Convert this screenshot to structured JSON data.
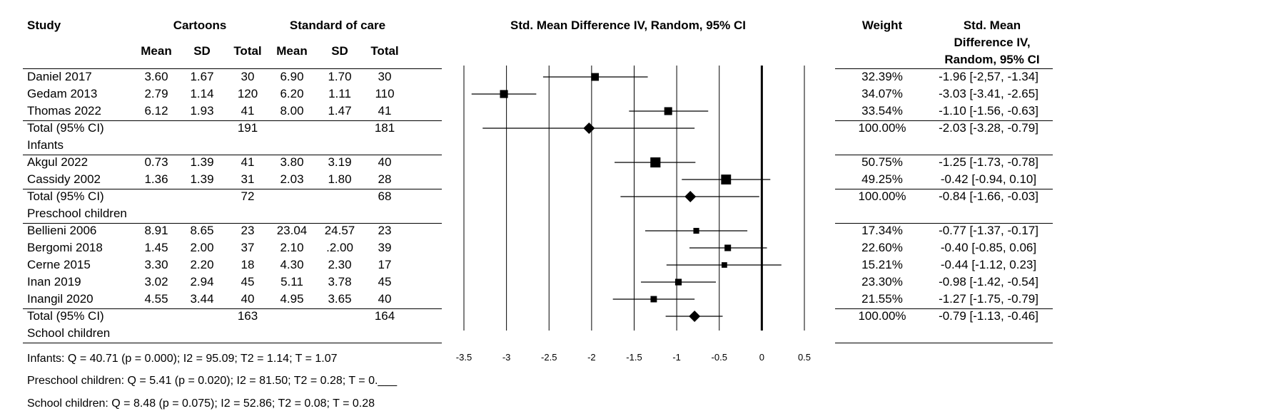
{
  "headers": {
    "study": "Study",
    "group1": "Cartoons",
    "group2": "Standard of care",
    "mean": "Mean",
    "sd": "SD",
    "total": "Total",
    "plot_title": "Std. Mean Difference IV, Random, 95% CI",
    "weight": "Weight",
    "smd_lines": [
      "Std. Mean",
      "Difference IV,",
      "Random, 95% CI"
    ]
  },
  "rows": [
    {
      "type": "study",
      "name": "Daniel 2017",
      "m1": "3.60",
      "sd1": "1.67",
      "n1": "30",
      "m2": "6.90",
      "sd2": "1.70",
      "n2": "30",
      "weight": "32.39%",
      "ci": "-1.96 [-2,57, -1.34]",
      "est": -1.96,
      "lo": -2.57,
      "hi": -1.34,
      "marker": "square",
      "w": 32.39
    },
    {
      "type": "study",
      "name": "Gedam 2013",
      "m1": "2.79",
      "sd1": "1.14",
      "n1": "120",
      "m2": "6.20",
      "sd2": "1.11",
      "n2": "110",
      "weight": "34.07%",
      "ci": "-3.03 [-3.41, -2.65]",
      "est": -3.03,
      "lo": -3.41,
      "hi": -2.65,
      "marker": "square",
      "w": 34.07
    },
    {
      "type": "study",
      "name": "Thomas 2022",
      "m1": "6.12",
      "sd1": "1.93",
      "n1": "41",
      "m2": "8.00",
      "sd2": "1.47",
      "n2": "41",
      "weight": "33.54%",
      "ci": "-1.10 [-1.56, -0.63]",
      "est": -1.1,
      "lo": -1.56,
      "hi": -0.63,
      "marker": "square",
      "w": 33.54
    },
    {
      "type": "total",
      "name": "Total (95% CI)",
      "m1": "",
      "sd1": "",
      "n1": "191",
      "m2": "",
      "sd2": "",
      "n2": "181",
      "weight": "100.00%",
      "ci": "-2.03 [-3.28, -0.79]",
      "est": -2.03,
      "lo": -3.28,
      "hi": -0.79,
      "marker": "diamond"
    },
    {
      "type": "label",
      "name": "Infants"
    },
    {
      "type": "study",
      "name": "Akgul 2022",
      "m1": "0.73",
      "sd1": "1.39",
      "n1": "41",
      "m2": "3.80",
      "sd2": "3.19",
      "n2": "40",
      "weight": "50.75%",
      "ci": "-1.25 [-1.73, -0.78]",
      "est": -1.25,
      "lo": -1.73,
      "hi": -0.78,
      "marker": "square",
      "w": 50.75
    },
    {
      "type": "study",
      "name": "Cassidy 2002",
      "m1": "1.36",
      "sd1": "1.39",
      "n1": "31",
      "m2": "2.03",
      "sd2": "1.80",
      "n2": "28",
      "weight": "49.25%",
      "ci": "-0.42 [-0.94, 0.10]",
      "est": -0.42,
      "lo": -0.94,
      "hi": 0.1,
      "marker": "square",
      "w": 49.25
    },
    {
      "type": "total",
      "name": "Total (95% CI)",
      "m1": "",
      "sd1": "",
      "n1": "72",
      "m2": "",
      "sd2": "",
      "n2": "68",
      "weight": "100.00%",
      "ci": "-0.84 [-1.66, -0.03]",
      "est": -0.84,
      "lo": -1.66,
      "hi": -0.03,
      "marker": "diamond"
    },
    {
      "type": "label",
      "name": "Preschool children"
    },
    {
      "type": "study",
      "name": "Bellieni 2006",
      "m1": "8.91",
      "sd1": "8.65",
      "n1": "23",
      "m2": "23.04",
      "sd2": "24.57",
      "n2": "23",
      "weight": "17.34%",
      "ci": "-0.77 [-1.37, -0.17]",
      "est": -0.77,
      "lo": -1.37,
      "hi": -0.17,
      "marker": "square",
      "w": 17.34
    },
    {
      "type": "study",
      "name": "Bergomi 2018",
      "m1": "1.45",
      "sd1": "2.00",
      "n1": "37",
      "m2": "2.10",
      "sd2": ".2.00",
      "n2": "39",
      "weight": "22.60%",
      "ci": "-0.40 [-0.85, 0.06]",
      "est": -0.4,
      "lo": -0.85,
      "hi": 0.06,
      "marker": "square",
      "w": 22.6
    },
    {
      "type": "study",
      "name": "Cerne 2015",
      "m1": "3.30",
      "sd1": "2.20",
      "n1": "18",
      "m2": "4.30",
      "sd2": "2.30",
      "n2": "17",
      "weight": "15.21%",
      "ci": "-0.44 [-1.12, 0.23]",
      "est": -0.44,
      "lo": -1.12,
      "hi": 0.23,
      "marker": "square",
      "w": 15.21
    },
    {
      "type": "study",
      "name": "Inan 2019",
      "m1": "3.02",
      "sd1": "2.94",
      "n1": "45",
      "m2": "5.11",
      "sd2": "3.78",
      "n2": "45",
      "weight": "23.30%",
      "ci": "-0.98 [-1.42, -0.54]",
      "est": -0.98,
      "lo": -1.42,
      "hi": -0.54,
      "marker": "square",
      "w": 23.3
    },
    {
      "type": "study",
      "name": "Inangil 2020",
      "m1": "4.55",
      "sd1": "3.44",
      "n1": "40",
      "m2": "4.95",
      "sd2": "3.65",
      "n2": "40",
      "weight": "21.55%",
      "ci": "-1.27 [-1.75, -0.79]",
      "est": -1.27,
      "lo": -1.75,
      "hi": -0.79,
      "marker": "square",
      "w": 21.55
    },
    {
      "type": "total",
      "name": "Total (95% CI)",
      "m1": "",
      "sd1": "",
      "n1": "163",
      "m2": "",
      "sd2": "",
      "n2": "164",
      "weight": "100.00%",
      "ci": "-0.79 [-1.13, -0.46]",
      "est": -0.79,
      "lo": -1.13,
      "hi": -0.46,
      "marker": "diamond"
    },
    {
      "type": "label",
      "name": "School children"
    }
  ],
  "footnotes": [
    "Infants: Q = 40.71 (p = 0.000); I2 = 95.09; T2 = 1.14; T = 1.07",
    "Preschool children: Q = 5.41 (p = 0.020); I2 = 81.50; T2 = 0.28; T = 0.___",
    "School children: Q = 8.48 (p = 0.075); I2 = 52.86; T2 = 0.08; T = 0.28"
  ],
  "chart_data": {
    "type": "scatter",
    "subtype": "forest",
    "title": "Std. Mean Difference IV, Random, 95% CI",
    "xlim": [
      -3.5,
      0.5
    ],
    "xticks": [
      -3.5,
      -3,
      -2.5,
      -2,
      -1.5,
      -1,
      -0.5,
      0,
      0.5
    ],
    "xtick_labels": [
      "-3.5",
      "-3",
      "-2.5",
      "-2",
      "-1.5",
      "-1",
      "-0.5",
      "0",
      "0.5"
    ],
    "gridlines": [
      -3.5,
      -3,
      -2.5,
      -2,
      -1.5,
      -1,
      -0.5,
      0,
      0.5
    ],
    "null_line": 0,
    "studies": [
      "Daniel 2017",
      "Gedam 2013",
      "Thomas 2022",
      "Total (95% CI)",
      "Akgul 2022",
      "Cassidy 2002",
      "Total (95% CI)",
      "Bellieni 2006",
      "Bergomi 2018",
      "Cerne 2015",
      "Inan 2019",
      "Inangil 2020",
      "Total (95% CI)"
    ],
    "estimates": [
      -1.96,
      -3.03,
      -1.1,
      -2.03,
      -1.25,
      -0.42,
      -0.84,
      -0.77,
      -0.4,
      -0.44,
      -0.98,
      -1.27,
      -0.79
    ],
    "ci_lower": [
      -2.57,
      -3.41,
      -1.56,
      -3.28,
      -1.73,
      -0.94,
      -1.66,
      -1.37,
      -0.85,
      -1.12,
      -1.42,
      -1.75,
      -1.13
    ],
    "ci_upper": [
      -1.34,
      -2.65,
      -0.63,
      -0.79,
      -0.78,
      0.1,
      -0.03,
      -0.17,
      0.06,
      0.23,
      -0.54,
      -0.79,
      -0.46
    ],
    "weights": [
      32.39,
      34.07,
      33.54,
      100,
      50.75,
      49.25,
      100,
      17.34,
      22.6,
      15.21,
      23.3,
      21.55,
      100
    ]
  }
}
